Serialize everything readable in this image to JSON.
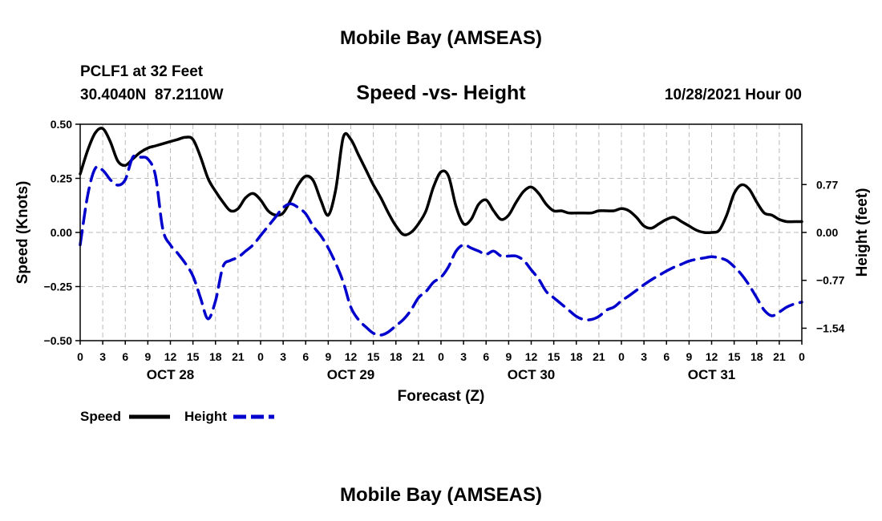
{
  "page": {
    "top_title": "Mobile Bay (AMSEAS)",
    "bottom_title": "Mobile Bay (AMSEAS)"
  },
  "header": {
    "station": "PCLF1 at 32 Feet",
    "coords": "30.4040N  87.2110W",
    "chart_title": "Speed -vs- Height",
    "datetime": "10/28/2021 Hour 00"
  },
  "colors": {
    "speed": "#000000",
    "height": "#0000cc",
    "grid": "#bbbbbb"
  },
  "chart_data": {
    "type": "line",
    "title": "Speed -vs- Height",
    "xlabel": "Forecast (Z)",
    "ylabel": "Speed (Knots)",
    "y2label": "Height (feet)",
    "x_range_hours": [
      0,
      96
    ],
    "ylim": [
      -0.5,
      0.5
    ],
    "y2lim": [
      -1.74,
      1.74
    ],
    "y_ticks": [
      "0.50",
      "0.25",
      "0.00",
      "−0.25",
      "−0.50"
    ],
    "y2_ticks": [
      "0.77",
      "0.00",
      "−0.77",
      "−1.54"
    ],
    "x_tick_labels": [
      "0",
      "3",
      "6",
      "9",
      "12",
      "15",
      "18",
      "21",
      "0",
      "3",
      "6",
      "9",
      "12",
      "15",
      "18",
      "21",
      "0",
      "3",
      "6",
      "9",
      "12",
      "15",
      "18",
      "21",
      "0",
      "3",
      "6",
      "9",
      "12",
      "15",
      "18",
      "21",
      "0"
    ],
    "day_labels": [
      "OCT 28",
      "OCT 29",
      "OCT 30",
      "OCT 31"
    ],
    "grid": true,
    "legend_position": "bottom-left",
    "series": [
      {
        "name": "Speed",
        "axis": "left",
        "style": "solid",
        "x": [
          0,
          1,
          2,
          3,
          4,
          5,
          6,
          7,
          8,
          9,
          10,
          11,
          12,
          13,
          14,
          15,
          16,
          17,
          18,
          19,
          20,
          21,
          22,
          23,
          24,
          25,
          26,
          27,
          28,
          29,
          30,
          31,
          32,
          33,
          34,
          35,
          36,
          37,
          38,
          39,
          40,
          41,
          42,
          43,
          44,
          45,
          46,
          47,
          48,
          49,
          50,
          51,
          52,
          53,
          54,
          55,
          56,
          57,
          58,
          59,
          60,
          61,
          62,
          63,
          64,
          65,
          66,
          67,
          68,
          69,
          70,
          71,
          72,
          73,
          74,
          75,
          76,
          77,
          78,
          79,
          80,
          81,
          82,
          83,
          84,
          85,
          86,
          87,
          88,
          89,
          90,
          91,
          92,
          93,
          94,
          95,
          96
        ],
        "values": [
          0.27,
          0.38,
          0.46,
          0.48,
          0.42,
          0.33,
          0.31,
          0.34,
          0.37,
          0.39,
          0.4,
          0.41,
          0.42,
          0.43,
          0.44,
          0.43,
          0.35,
          0.25,
          0.19,
          0.14,
          0.1,
          0.11,
          0.16,
          0.18,
          0.15,
          0.1,
          0.08,
          0.09,
          0.15,
          0.22,
          0.26,
          0.24,
          0.15,
          0.08,
          0.2,
          0.44,
          0.43,
          0.36,
          0.29,
          0.22,
          0.16,
          0.09,
          0.03,
          -0.01,
          0.0,
          0.04,
          0.1,
          0.21,
          0.28,
          0.26,
          0.12,
          0.04,
          0.06,
          0.13,
          0.15,
          0.1,
          0.06,
          0.08,
          0.14,
          0.19,
          0.21,
          0.18,
          0.13,
          0.1,
          0.1,
          0.09,
          0.09,
          0.09,
          0.09,
          0.1,
          0.1,
          0.1,
          0.11,
          0.1,
          0.07,
          0.03,
          0.02,
          0.04,
          0.06,
          0.07,
          0.05,
          0.03,
          0.01,
          0.0,
          0.0,
          0.01,
          0.08,
          0.18,
          0.22,
          0.2,
          0.14,
          0.09,
          0.08,
          0.06,
          0.05,
          0.05,
          0.05
        ]
      },
      {
        "name": "Height",
        "axis": "right",
        "style": "dashed",
        "x": [
          0,
          1,
          2,
          3,
          4,
          5,
          6,
          7,
          8,
          9,
          10,
          11,
          12,
          13,
          14,
          15,
          16,
          17,
          18,
          19,
          20,
          21,
          22,
          23,
          24,
          25,
          26,
          27,
          28,
          29,
          30,
          31,
          32,
          33,
          34,
          35,
          36,
          37,
          38,
          39,
          40,
          41,
          42,
          43,
          44,
          45,
          46,
          47,
          48,
          49,
          50,
          51,
          52,
          53,
          54,
          55,
          56,
          57,
          58,
          59,
          60,
          61,
          62,
          63,
          64,
          65,
          66,
          67,
          68,
          69,
          70,
          71,
          72,
          73,
          74,
          75,
          76,
          77,
          78,
          79,
          80,
          81,
          82,
          83,
          84,
          85,
          86,
          87,
          88,
          89,
          90,
          91,
          92,
          93,
          94,
          95,
          96
        ],
        "values": [
          -0.2,
          0.6,
          1.03,
          1.0,
          0.85,
          0.76,
          0.85,
          1.21,
          1.21,
          1.18,
          0.92,
          0.05,
          -0.2,
          -0.34,
          -0.5,
          -0.7,
          -1.05,
          -1.39,
          -1.1,
          -0.55,
          -0.45,
          -0.4,
          -0.3,
          -0.2,
          -0.05,
          0.1,
          0.25,
          0.4,
          0.46,
          0.4,
          0.3,
          0.1,
          -0.05,
          -0.25,
          -0.5,
          -0.8,
          -1.2,
          -1.4,
          -1.52,
          -1.62,
          -1.65,
          -1.6,
          -1.5,
          -1.4,
          -1.25,
          -1.05,
          -0.95,
          -0.8,
          -0.72,
          -0.55,
          -0.3,
          -0.2,
          -0.25,
          -0.3,
          -0.35,
          -0.3,
          -0.38,
          -0.38,
          -0.38,
          -0.45,
          -0.6,
          -0.75,
          -0.95,
          -1.05,
          -1.15,
          -1.25,
          -1.35,
          -1.4,
          -1.4,
          -1.35,
          -1.25,
          -1.2,
          -1.1,
          -1.02,
          -0.93,
          -0.84,
          -0.76,
          -0.69,
          -0.62,
          -0.56,
          -0.51,
          -0.46,
          -0.43,
          -0.41,
          -0.39,
          -0.41,
          -0.45,
          -0.55,
          -0.68,
          -0.85,
          -1.05,
          -1.25,
          -1.34,
          -1.28,
          -1.2,
          -1.15,
          -1.12
        ]
      }
    ]
  }
}
